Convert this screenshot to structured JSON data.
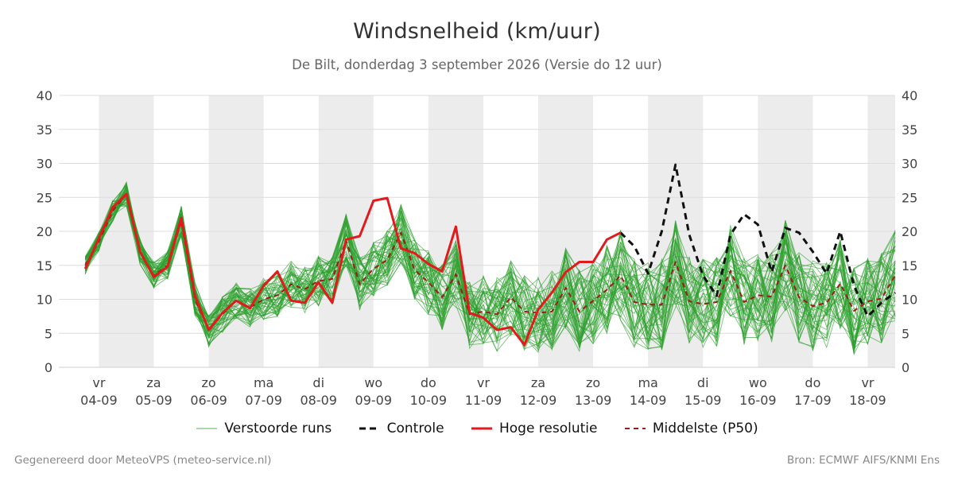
{
  "chart_data": {
    "type": "line",
    "title": "Windsnelheid (km/uur)",
    "subtitle": "De Bilt, donderdag  3 september 2026 (Versie do 12 uur)",
    "ylim": [
      0,
      40
    ],
    "yticks": [
      0,
      5,
      10,
      15,
      20,
      25,
      30,
      35,
      40
    ],
    "xlim": [
      -0.73,
      14.5
    ],
    "x_unit": "days from 04-09",
    "grid": true,
    "weekend_shading": true,
    "xticks": [
      {
        "x": 0,
        "day": "vr",
        "date": "04-09"
      },
      {
        "x": 1,
        "day": "za",
        "date": "05-09"
      },
      {
        "x": 2,
        "day": "zo",
        "date": "06-09"
      },
      {
        "x": 3,
        "day": "ma",
        "date": "07-09"
      },
      {
        "x": 4,
        "day": "di",
        "date": "08-09"
      },
      {
        "x": 5,
        "day": "wo",
        "date": "09-09"
      },
      {
        "x": 6,
        "day": "do",
        "date": "10-09"
      },
      {
        "x": 7,
        "day": "vr",
        "date": "11-09"
      },
      {
        "x": 8,
        "day": "za",
        "date": "12-09"
      },
      {
        "x": 9,
        "day": "zo",
        "date": "13-09"
      },
      {
        "x": 10,
        "day": "ma",
        "date": "14-09"
      },
      {
        "x": 11,
        "day": "di",
        "date": "15-09"
      },
      {
        "x": 12,
        "day": "wo",
        "date": "16-09"
      },
      {
        "x": 13,
        "day": "do",
        "date": "17-09"
      },
      {
        "x": 14,
        "day": "vr",
        "date": "18-09"
      }
    ],
    "series": [
      {
        "name": "Hoge resolutie",
        "color": "#e31a1c",
        "style": "solid",
        "x": [
          -0.25,
          0,
          0.25,
          0.5,
          0.75,
          1.0,
          1.25,
          1.5,
          1.75,
          2.0,
          2.25,
          2.5,
          2.75,
          3.0,
          3.25,
          3.5,
          3.75,
          4.0,
          4.25,
          4.5,
          4.75,
          5.0,
          5.25,
          5.5,
          5.75,
          6.0,
          6.25,
          6.5,
          6.75,
          7.0,
          7.25,
          7.5,
          7.75,
          8.0,
          8.25,
          8.5,
          8.75,
          9.0,
          9.25,
          9.5
        ],
        "values": [
          14.5,
          19,
          23.5,
          25.5,
          17,
          13.3,
          14.8,
          22,
          10.5,
          5.5,
          8,
          9.8,
          8.7,
          12,
          14.1,
          9.8,
          9.5,
          12.5,
          9.5,
          18.8,
          19.3,
          24.5,
          24.9,
          17.5,
          16.8,
          15.2,
          14.1,
          20.7,
          8,
          7.3,
          5.5,
          5.9,
          3.3,
          8.5,
          11,
          14,
          15.5,
          15.5,
          18.8,
          19.8
        ]
      },
      {
        "name": "Controle",
        "color": "#111111",
        "style": "dashed",
        "x": [
          9.5,
          9.75,
          10.0,
          10.25,
          10.5,
          10.75,
          11.0,
          11.25,
          11.5,
          11.75,
          12.0,
          12.25,
          12.5,
          12.75,
          13.0,
          13.25,
          13.5,
          13.75,
          14.0,
          14.25,
          14.5
        ],
        "values": [
          19.8,
          17.8,
          13.8,
          20,
          29.8,
          19.5,
          13.5,
          10.5,
          19.5,
          22.5,
          21,
          14,
          20.5,
          19.8,
          17,
          13.8,
          20,
          12,
          7.5,
          9.5,
          11
        ]
      },
      {
        "name": "Middelste (P50)",
        "color": "#9e1b1b",
        "style": "dashed",
        "x": [
          -0.25,
          0,
          0.25,
          0.5,
          0.75,
          1.0,
          1.25,
          1.5,
          1.75,
          2.0,
          2.25,
          2.5,
          2.75,
          3.0,
          3.25,
          3.5,
          3.75,
          4.0,
          4.25,
          4.5,
          4.75,
          5.0,
          5.25,
          5.5,
          5.75,
          6.0,
          6.25,
          6.5,
          6.75,
          7.0,
          7.25,
          7.5,
          7.75,
          8.0,
          8.25,
          8.5,
          8.75,
          9.0,
          9.25,
          9.5,
          9.75,
          10.0,
          10.25,
          10.5,
          10.75,
          11.0,
          11.25,
          11.5,
          11.75,
          12.0,
          12.25,
          12.5,
          12.75,
          13.0,
          13.25,
          13.5,
          13.75,
          14.0,
          14.25,
          14.5
        ],
        "values": [
          15,
          18.5,
          23,
          25.5,
          17,
          13.5,
          15,
          21.5,
          10,
          5.5,
          7.8,
          9.8,
          8.8,
          10,
          10.6,
          12.2,
          11.5,
          12.7,
          13,
          18.7,
          12.2,
          14.5,
          15.8,
          19.8,
          14.3,
          12.5,
          10.3,
          13.7,
          7.8,
          8.2,
          7.8,
          10.3,
          8.2,
          8,
          8.2,
          11.7,
          8.2,
          9.8,
          11.4,
          13.5,
          9.6,
          9.2,
          9.2,
          15.5,
          9.7,
          9.3,
          9.6,
          14.2,
          9.6,
          10.6,
          10.4,
          15,
          10.3,
          9,
          9.5,
          12.3,
          8.3,
          9.7,
          10.1,
          13.5
        ]
      }
    ],
    "ensemble": {
      "name": "Verstoorde runs",
      "color": "#2ca02c",
      "note": "Circa 50 perturbed ensemble members, shown as thin green lines scattered around the median"
    }
  },
  "legend": {
    "perturbed": "Verstoorde runs",
    "control": "Controle",
    "hires": "Hoge resolutie",
    "median": "Middelste (P50)"
  },
  "footer": {
    "left": "Gegenereerd door MeteoVPS (meteo-service.nl)",
    "right": "Bron: ECMWF AIFS/KNMI Ens"
  }
}
